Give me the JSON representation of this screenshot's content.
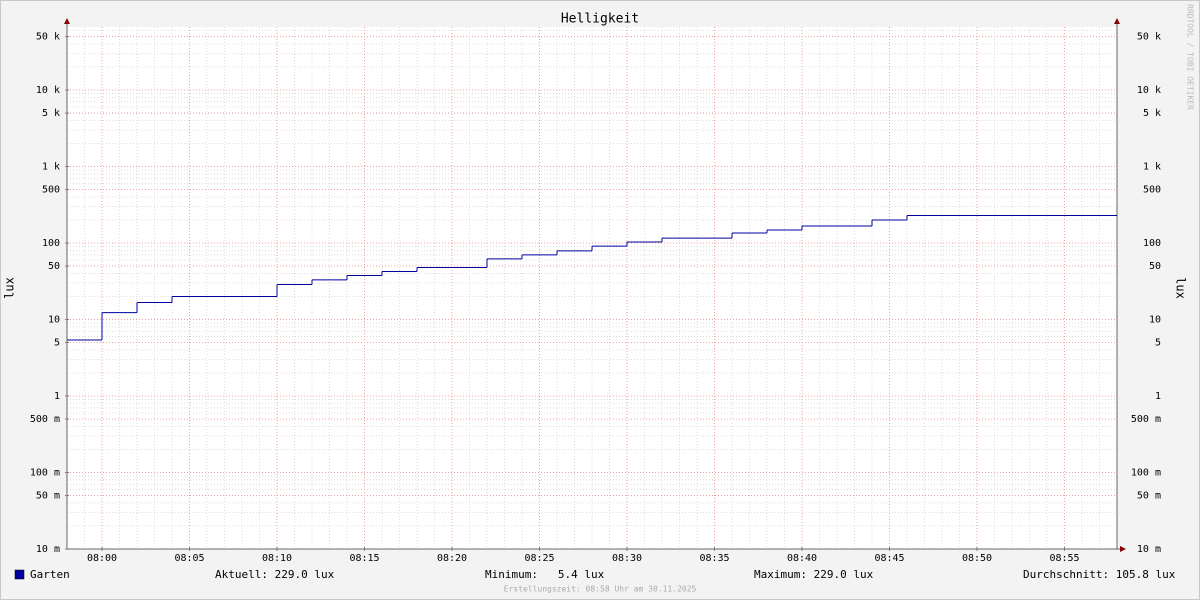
{
  "chart_data": {
    "type": "step",
    "title": "Helligkeit",
    "y_label": "lux",
    "x": [
      "07:58",
      "08:00",
      "08:02",
      "08:04",
      "08:10",
      "08:12",
      "08:14",
      "08:16",
      "08:18",
      "08:22",
      "08:24",
      "08:26",
      "08:28",
      "08:30",
      "08:32",
      "08:36",
      "08:38",
      "08:40",
      "08:44",
      "08:46"
    ],
    "series": [
      {
        "name": "Garten",
        "color": "#0000a0",
        "values": [
          5.4,
          12.3,
          16.7,
          20,
          28.7,
          33,
          37.6,
          42.4,
          47.8,
          62,
          70,
          79,
          91,
          103,
          116,
          135,
          148,
          167,
          200,
          229
        ]
      }
    ],
    "xlim": [
      "07:58",
      "08:58"
    ],
    "xticks": [
      "08:00",
      "08:05",
      "08:10",
      "08:15",
      "08:20",
      "08:25",
      "08:30",
      "08:35",
      "08:40",
      "08:45",
      "08:50",
      "08:55"
    ],
    "log_y": true,
    "ylim": [
      0.01,
      66700
    ],
    "yticks": [
      {
        "value": 0.01,
        "label": "10 m"
      },
      {
        "value": 0.05,
        "label": "50 m"
      },
      {
        "value": 0.1,
        "label": "100 m"
      },
      {
        "value": 0.5,
        "label": "500 m"
      },
      1,
      5,
      10,
      50,
      100,
      500,
      {
        "value": 1000,
        "label": "1 k"
      },
      {
        "value": 5000,
        "label": "5 k"
      },
      {
        "value": 10000,
        "label": "10 k"
      },
      {
        "value": 50000,
        "label": "50 k"
      }
    ],
    "grid": true,
    "stats": [
      "Aktuell: 229.0 lux",
      "Minimum:   5.4 lux",
      "Maximum: 229.0 lux",
      "Durchschnitt: 105.8 lux"
    ],
    "footer": "Erstellungszeit: 08:58 Uhr am 30.11.2025",
    "watermark": "RRDTOOL / TOBI OETIKER"
  }
}
